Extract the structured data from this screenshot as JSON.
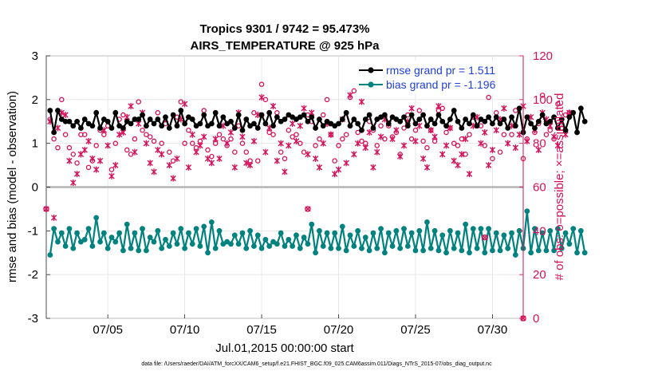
{
  "chart_data": {
    "type": "line",
    "title": "Tropics 9301 / 9742 = 95.473%",
    "subtitle": "AIRS_TEMPERATURE @ 925 hPa",
    "xlabel": "Jul.01,2015 00:00:00 start",
    "ylabel_left": "rmse and bias (model - observation)",
    "ylabel_right": "# of obs: o=possible; ×=assimilated",
    "footer": "data file: /Users/raeder/DAI/ATM_forcXX/CAM6_setup/f.e21.FHIST_BGC.f09_025.CAM6assim.011/Diags_NTrS_2015-07/obs_diag_output.nc",
    "xlim": [
      1,
      32
    ],
    "ylim_left": [
      -3,
      3
    ],
    "ylim_right": [
      0,
      120
    ],
    "x_ticks": [
      5,
      10,
      15,
      20,
      25,
      30
    ],
    "x_tick_labels": [
      "07/05",
      "07/10",
      "07/15",
      "07/20",
      "07/25",
      "07/30"
    ],
    "y_ticks_left": [
      "-3",
      "-2",
      "-1",
      "0",
      "1",
      "2",
      "3"
    ],
    "y_ticks_right": [
      "0",
      "20",
      "40",
      "60",
      "80",
      "100",
      "120"
    ],
    "grid": true,
    "colors": {
      "rmse": "#000000",
      "bias": "#00827f",
      "obs": "#d6105a",
      "legend_text": "#1f3fd9",
      "zero_line": "#b4b4b4"
    },
    "legend": {
      "placement": "top-right",
      "entries": [
        {
          "name": "rmse grand pr = 1.511",
          "color": "#000000"
        },
        {
          "name": "bias grand pr = -1.196",
          "color": "#00827f"
        }
      ]
    },
    "series": [
      {
        "name": "rmse",
        "color": "#000000",
        "x_start": 1.25,
        "x_step": 0.25,
        "values": [
          1.75,
          1.25,
          1.75,
          1.55,
          1.5,
          1.5,
          1.4,
          1.5,
          1.35,
          1.55,
          1.45,
          1.4,
          1.7,
          1.35,
          1.55,
          1.5,
          1.35,
          1.7,
          1.4,
          1.35,
          1.5,
          1.45,
          1.55,
          1.55,
          1.65,
          1.4,
          1.55,
          1.45,
          1.55,
          1.4,
          1.6,
          1.35,
          1.65,
          1.4,
          1.75,
          1.45,
          1.6,
          1.55,
          1.4,
          1.45,
          1.65,
          1.4,
          1.45,
          1.7,
          1.4,
          1.6,
          1.45,
          1.5,
          1.35,
          1.65,
          1.3,
          1.55,
          1.4,
          1.45,
          1.35,
          1.65,
          1.45,
          1.7,
          1.4,
          1.6,
          1.5,
          1.55,
          1.65,
          1.6,
          1.55,
          1.6,
          1.65,
          1.5,
          1.6,
          1.35,
          1.55,
          1.4,
          1.5,
          1.45,
          1.4,
          1.45,
          1.55,
          1.7,
          1.4,
          1.55,
          1.45,
          1.3,
          1.55,
          1.65,
          1.35,
          1.55,
          1.6,
          1.65,
          1.45,
          1.6,
          1.55,
          1.5,
          1.6,
          1.4,
          1.65,
          1.45,
          1.55,
          1.65,
          1.4,
          1.55,
          1.45,
          1.65,
          1.5,
          1.4,
          1.55,
          1.75,
          1.5,
          1.35,
          1.55,
          1.45,
          1.65,
          1.4,
          1.55,
          1.5,
          1.6,
          1.45,
          1.6,
          1.45,
          1.55,
          1.35,
          1.6,
          1.4,
          1.8,
          1.25,
          1.6,
          1.45,
          1.35,
          1.5,
          1.65,
          1.45,
          1.5,
          1.6,
          1.35,
          1.55,
          1.3,
          1.6,
          1.7,
          1.25,
          1.8,
          1.5
        ]
      },
      {
        "name": "bias",
        "color": "#00827f",
        "x_start": 1.25,
        "x_step": 0.25,
        "values": [
          -1.55,
          -0.95,
          -1.25,
          -1.05,
          -1.35,
          -0.95,
          -1.4,
          -1.05,
          -1.25,
          -1.2,
          -0.95,
          -1.35,
          -0.7,
          -1.25,
          -1.05,
          -1.4,
          -1.15,
          -1.25,
          -1.05,
          -1.45,
          -0.85,
          -1.4,
          -1.05,
          -1.45,
          -0.95,
          -1.45,
          -1.15,
          -1.25,
          -1.0,
          -1.4,
          -1.2,
          -1.35,
          -1.05,
          -1.3,
          -0.95,
          -1.4,
          -1.05,
          -1.3,
          -0.95,
          -1.35,
          -0.9,
          -1.5,
          -0.8,
          -1.4,
          -1.0,
          -1.3,
          -1.25,
          -1.3,
          -1.1,
          -1.3,
          -1.05,
          -1.4,
          -1.0,
          -1.35,
          -1.1,
          -1.4,
          -1.2,
          -1.35,
          -1.25,
          -1.3,
          -1.05,
          -1.35,
          -1.2,
          -1.35,
          -1.1,
          -1.4,
          -1.15,
          -1.3,
          -0.85,
          -1.5,
          -1.0,
          -1.35,
          -1.05,
          -1.4,
          -1.05,
          -1.4,
          -0.9,
          -1.45,
          -1.1,
          -1.35,
          -1.0,
          -1.4,
          -1.15,
          -1.45,
          -1.05,
          -1.4,
          -0.95,
          -1.5,
          -1.05,
          -1.35,
          -1.0,
          -1.4,
          -0.95,
          -1.35,
          -1.05,
          -1.45,
          -1.0,
          -1.45,
          -0.8,
          -1.4,
          -1.0,
          -1.45,
          -1.1,
          -1.5,
          -1.0,
          -1.4,
          -1.05,
          -1.45,
          -0.85,
          -1.5,
          -0.95,
          -1.4,
          -0.95,
          -1.5,
          -0.95,
          -1.45,
          -1.05,
          -1.45,
          -1.1,
          -1.4,
          -1.05,
          -1.55,
          -1.0,
          -1.4,
          -0.55,
          -1.5,
          -0.95,
          -1.45,
          -1.05,
          -1.45,
          -1.0,
          -1.45,
          -0.95,
          -1.4,
          -1.05,
          -1.3,
          -0.95,
          -1.5,
          -1.0,
          -1.5
        ]
      },
      {
        "name": "possible obs",
        "color": "#d6105a",
        "marker": "o",
        "x_start": 1.25,
        "x_step": 0.25,
        "axis": "right",
        "values": [
          91,
          82,
          78,
          100,
          84,
          78,
          75,
          71,
          84,
          84,
          69,
          72,
          79,
          86,
          84,
          88,
          68,
          80,
          91,
          93,
          77,
          75,
          82,
          99,
          86,
          84,
          83,
          81,
          94,
          80,
          89,
          76,
          72,
          92,
          99,
          80,
          86,
          80,
          78,
          81,
          95,
          77,
          74,
          80,
          84,
          82,
          79,
          82,
          76,
          88,
          80,
          76,
          72,
          94,
          72,
          107,
          100,
          85,
          84,
          94,
          76,
          73,
          86,
          83,
          84,
          80,
          76,
          93,
          90,
          79,
          82,
          93,
          100,
          84,
          72,
          79,
          82,
          84,
          101,
          104,
          85,
          81,
          80,
          90,
          86,
          79,
          88,
          82,
          88,
          83,
          85,
          75,
          87,
          93,
          82,
          86,
          95,
          81,
          78,
          86,
          81,
          95,
          96,
          85,
          87,
          80,
          79,
          82,
          75,
          84,
          92,
          88,
          88,
          79,
          101,
          73,
          94,
          76,
          84,
          106,
          84,
          95,
          96,
          73,
          82,
          89,
          85,
          89,
          102,
          84,
          86,
          82,
          98,
          87,
          93,
          94
        ]
      },
      {
        "name": "assimilated obs",
        "color": "#d6105a",
        "marker": "x",
        "x_start": 1.25,
        "x_step": 0.25,
        "axis": "right",
        "values": [
          90,
          46,
          87,
          94,
          93,
          72,
          62,
          66,
          75,
          77,
          81,
          73,
          68,
          72,
          86,
          79,
          65,
          70,
          84,
          85,
          92,
          97,
          76,
          89,
          94,
          80,
          71,
          67,
          77,
          75,
          91,
          70,
          64,
          73,
          91,
          98,
          69,
          84,
          76,
          79,
          83,
          73,
          71,
          82,
          73,
          88,
          80,
          85,
          69,
          94,
          83,
          71,
          70,
          81,
          93,
          101,
          76,
          87,
          97,
          72,
          80,
          67,
          79,
          89,
          81,
          88,
          96,
          75,
          94,
          73,
          69,
          80,
          89,
          84,
          66,
          68,
          91,
          71,
          102,
          75,
          80,
          99,
          78,
          85,
          69,
          76,
          83,
          91,
          89,
          82,
          86,
          74,
          79,
          90,
          96,
          81,
          88,
          73,
          69,
          86,
          83,
          97,
          75,
          79,
          87,
          72,
          70,
          75,
          82,
          66,
          88,
          92,
          80,
          85,
          70,
          77,
          86,
          91,
          96,
          80,
          88,
          78,
          84,
          97,
          81,
          92,
          86,
          77,
          94,
          91,
          88,
          83,
          79,
          90,
          84,
          94
        ]
      },
      {
        "name": "gap points",
        "color": "#d6105a",
        "points": [
          {
            "x": 1.0,
            "y": 50
          },
          {
            "x": 18.0,
            "y": 50
          },
          {
            "x": 29.5,
            "y": 37
          },
          {
            "x": 32.0,
            "y": 0
          }
        ],
        "axis": "right"
      }
    ]
  }
}
